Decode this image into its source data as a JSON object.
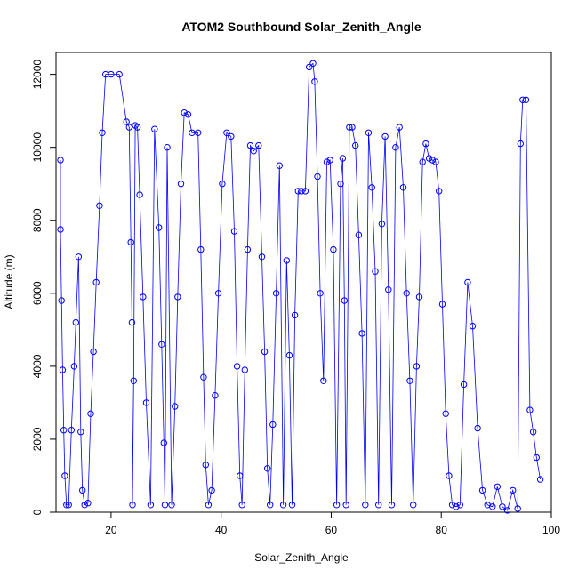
{
  "chart_data": {
    "type": "line",
    "title": "ATOM2 Southbound Solar_Zenith_Angle",
    "xlabel": "Solar_Zenith_Angle",
    "ylabel": "Altitude (m)",
    "xlim": [
      10,
      100
    ],
    "ylim": [
      0,
      12600
    ],
    "x_ticks": [
      20,
      40,
      60,
      80,
      100
    ],
    "y_ticks": [
      0,
      2000,
      4000,
      6000,
      8000,
      10000,
      12000
    ],
    "grid": false,
    "legend": "none",
    "colors": {
      "series": "#0000ff",
      "axes": "#000000"
    },
    "series": [
      {
        "values": [
          [
            10.8,
            9650
          ],
          [
            10.8,
            7750
          ],
          [
            11.0,
            5800
          ],
          [
            11.2,
            3900
          ],
          [
            11.4,
            2250
          ],
          [
            11.6,
            1000
          ],
          [
            11.9,
            200
          ],
          [
            12.3,
            200
          ],
          [
            12.8,
            2250
          ],
          [
            13.3,
            4000
          ],
          [
            13.6,
            5200
          ],
          [
            14.1,
            7000
          ],
          [
            14.5,
            2200
          ],
          [
            14.8,
            600
          ],
          [
            15.2,
            200
          ],
          [
            15.8,
            250
          ],
          [
            16.3,
            2700
          ],
          [
            16.8,
            4400
          ],
          [
            17.3,
            6300
          ],
          [
            17.9,
            8400
          ],
          [
            18.4,
            10400
          ],
          [
            19.0,
            12000
          ],
          [
            20.0,
            12000
          ],
          [
            21.5,
            12000
          ],
          [
            22.8,
            10700
          ],
          [
            23.3,
            10550
          ],
          [
            23.6,
            7400
          ],
          [
            23.8,
            5200
          ],
          [
            23.9,
            200
          ],
          [
            24.1,
            3600
          ],
          [
            24.4,
            10600
          ],
          [
            24.8,
            10550
          ],
          [
            25.2,
            8700
          ],
          [
            25.8,
            5900
          ],
          [
            26.4,
            3000
          ],
          [
            27.2,
            200
          ],
          [
            27.9,
            10500
          ],
          [
            28.7,
            7800
          ],
          [
            29.2,
            4600
          ],
          [
            29.6,
            1900
          ],
          [
            29.8,
            200
          ],
          [
            30.2,
            10000
          ],
          [
            31.0,
            200
          ],
          [
            31.6,
            2900
          ],
          [
            32.1,
            5900
          ],
          [
            32.7,
            9000
          ],
          [
            33.3,
            10950
          ],
          [
            34.0,
            10900
          ],
          [
            34.7,
            10400
          ],
          [
            35.8,
            10400
          ],
          [
            36.3,
            7200
          ],
          [
            36.8,
            3700
          ],
          [
            37.2,
            1300
          ],
          [
            37.7,
            200
          ],
          [
            38.3,
            600
          ],
          [
            38.9,
            3200
          ],
          [
            39.5,
            6000
          ],
          [
            40.2,
            9000
          ],
          [
            41.0,
            10400
          ],
          [
            41.8,
            10300
          ],
          [
            42.4,
            7700
          ],
          [
            42.9,
            4000
          ],
          [
            43.4,
            1000
          ],
          [
            43.8,
            200
          ],
          [
            44.3,
            3900
          ],
          [
            44.8,
            7200
          ],
          [
            45.3,
            10050
          ],
          [
            45.9,
            9900
          ],
          [
            46.8,
            10050
          ],
          [
            47.4,
            7000
          ],
          [
            47.9,
            4400
          ],
          [
            48.4,
            1200
          ],
          [
            48.9,
            200
          ],
          [
            49.4,
            2400
          ],
          [
            50.0,
            6000
          ],
          [
            50.6,
            9500
          ],
          [
            51.3,
            200
          ],
          [
            51.9,
            6900
          ],
          [
            52.4,
            4300
          ],
          [
            52.9,
            200
          ],
          [
            53.4,
            5400
          ],
          [
            54.0,
            8800
          ],
          [
            54.6,
            8800
          ],
          [
            55.3,
            8800
          ],
          [
            56.0,
            12200
          ],
          [
            56.7,
            12300
          ],
          [
            57.0,
            11800
          ],
          [
            57.5,
            9200
          ],
          [
            58.0,
            6000
          ],
          [
            58.6,
            3600
          ],
          [
            59.2,
            9600
          ],
          [
            59.8,
            9650
          ],
          [
            60.4,
            7200
          ],
          [
            61.0,
            200
          ],
          [
            61.7,
            9000
          ],
          [
            62.1,
            9700
          ],
          [
            62.4,
            5800
          ],
          [
            62.7,
            200
          ],
          [
            63.3,
            10550
          ],
          [
            63.8,
            10550
          ],
          [
            64.4,
            10050
          ],
          [
            65.0,
            7600
          ],
          [
            65.6,
            4900
          ],
          [
            66.2,
            200
          ],
          [
            66.8,
            10400
          ],
          [
            67.4,
            8900
          ],
          [
            68.0,
            6600
          ],
          [
            68.6,
            200
          ],
          [
            69.2,
            7900
          ],
          [
            69.8,
            10300
          ],
          [
            70.4,
            6100
          ],
          [
            71.0,
            200
          ],
          [
            71.7,
            10000
          ],
          [
            72.4,
            10550
          ],
          [
            73.1,
            8900
          ],
          [
            73.7,
            6000
          ],
          [
            74.3,
            3600
          ],
          [
            74.9,
            200
          ],
          [
            75.5,
            4000
          ],
          [
            76.0,
            5900
          ],
          [
            76.6,
            9600
          ],
          [
            77.2,
            10100
          ],
          [
            77.8,
            9700
          ],
          [
            78.4,
            9650
          ],
          [
            79.0,
            9600
          ],
          [
            79.6,
            8800
          ],
          [
            80.2,
            5700
          ],
          [
            80.8,
            2700
          ],
          [
            81.4,
            1000
          ],
          [
            82.0,
            200
          ],
          [
            82.7,
            150
          ],
          [
            83.4,
            200
          ],
          [
            84.1,
            3500
          ],
          [
            84.8,
            6300
          ],
          [
            85.7,
            5100
          ],
          [
            86.6,
            2300
          ],
          [
            87.5,
            600
          ],
          [
            88.4,
            200
          ],
          [
            89.3,
            150
          ],
          [
            90.2,
            700
          ],
          [
            91.1,
            150
          ],
          [
            92.0,
            50
          ],
          [
            93.0,
            600
          ],
          [
            93.9,
            100
          ],
          [
            94.4,
            10100
          ],
          [
            94.8,
            11300
          ],
          [
            95.4,
            11300
          ],
          [
            96.1,
            2800
          ],
          [
            96.7,
            2200
          ],
          [
            97.3,
            1500
          ],
          [
            98.0,
            900
          ]
        ]
      }
    ]
  }
}
